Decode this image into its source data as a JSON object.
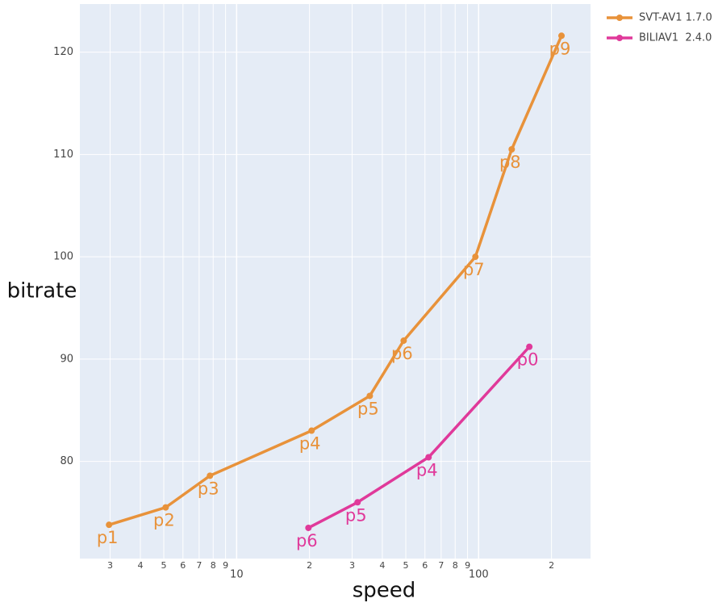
{
  "chart_data": {
    "type": "line",
    "x_label": "speed",
    "y_label": "bitrate",
    "x_log": true,
    "grid": true,
    "legend": "top-right",
    "xlim": [
      2.25,
      290
    ],
    "ylim": [
      70.5,
      124.7
    ],
    "xticks": [
      3,
      4,
      5,
      6,
      7,
      8,
      9,
      10,
      {
        "value": 20,
        "label": "2"
      },
      {
        "value": 30,
        "label": "3"
      },
      {
        "value": 40,
        "label": "4"
      },
      {
        "value": 50,
        "label": "5"
      },
      {
        "value": 60,
        "label": "6"
      },
      {
        "value": 70,
        "label": "7"
      },
      {
        "value": 80,
        "label": "8"
      },
      {
        "value": 90,
        "label": "9"
      },
      100,
      {
        "value": 200,
        "label": "2"
      }
    ],
    "yticks": [
      80,
      90,
      100,
      110,
      120
    ],
    "series": [
      {
        "name": "SVT-AV1 1.7.0",
        "color": "#e8923a",
        "x": [
          2.97,
          5.09,
          7.76,
          20.4,
          35.5,
          49.0,
          97,
          137,
          220
        ],
        "values": [
          73.8,
          75.5,
          78.6,
          83.0,
          86.4,
          91.8,
          100.0,
          110.5,
          121.6
        ],
        "text": [
          "p1",
          "p2",
          "p3",
          "p4",
          "p5",
          "p6",
          "p7",
          "p8",
          "p9"
        ]
      },
      {
        "name": "BILIAV1  2.4.0",
        "color": "#e0399a",
        "x": [
          19.8,
          31.6,
          62.1,
          162
        ],
        "values": [
          73.5,
          76.0,
          80.4,
          91.2
        ],
        "text": [
          "p6",
          "p5",
          "p4",
          "p0"
        ]
      }
    ]
  }
}
